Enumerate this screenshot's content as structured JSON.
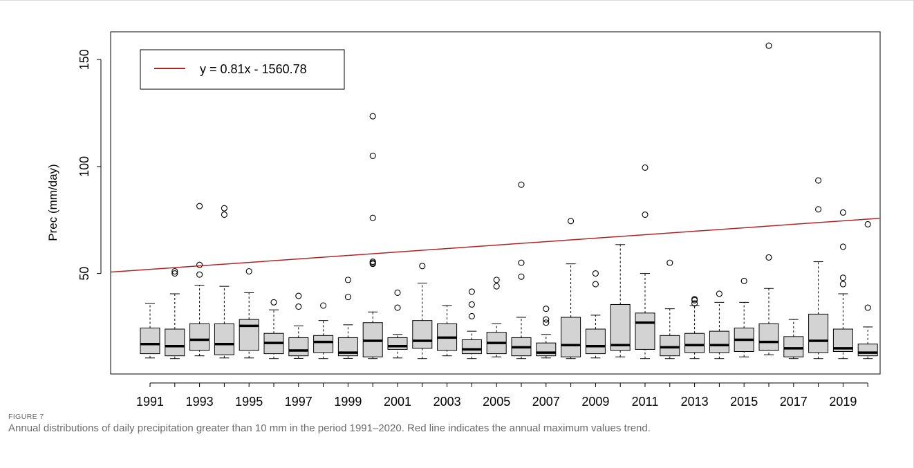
{
  "figure": {
    "label": "FIGURE 7",
    "caption": "Annual distributions of daily precipitation greater than 10 mm in the period 1991–2020. Red line indicates the annual maximum values trend."
  },
  "colors": {
    "box_fill": "#d3d3d3",
    "trend_line": "#b22222",
    "axis": "#000000",
    "frame": "#d9d9d9"
  },
  "chart_data": {
    "type": "box",
    "title": "",
    "xlabel": "",
    "ylabel": "Prec (mm/day)",
    "ylim": [
      3,
      163
    ],
    "grid": false,
    "legend_position": "top-left",
    "yticks": [
      50,
      100,
      150
    ],
    "xtick_labels": [
      "1991",
      "1993",
      "1995",
      "1997",
      "1999",
      "2001",
      "2003",
      "2005",
      "2007",
      "2009",
      "2011",
      "2013",
      "2015",
      "2017",
      "2019"
    ],
    "trend": {
      "label": "y = 0.81x - 1560.78",
      "slope": 0.81,
      "intercept": -1560.78
    },
    "boxes": [
      {
        "year": 1991,
        "min": 10.5,
        "q1": 12.5,
        "median": 17,
        "q3": 24.5,
        "max": 36,
        "outliers": []
      },
      {
        "year": 1992,
        "min": 10.2,
        "q1": 11.5,
        "median": 16,
        "q3": 24,
        "max": 40.5,
        "outliers": [
          50,
          51
        ]
      },
      {
        "year": 1993,
        "min": 11.5,
        "q1": 14,
        "median": 19,
        "q3": 26.5,
        "max": 44.5,
        "outliers": [
          49.5,
          54,
          81.5
        ]
      },
      {
        "year": 1994,
        "min": 10.5,
        "q1": 12,
        "median": 17,
        "q3": 26.5,
        "max": 44,
        "outliers": [
          77.5,
          80.5
        ]
      },
      {
        "year": 1995,
        "min": 10.5,
        "q1": 14,
        "median": 25.5,
        "q3": 28.5,
        "max": 41,
        "outliers": [
          51
        ]
      },
      {
        "year": 1996,
        "min": 10.2,
        "q1": 12.5,
        "median": 17.5,
        "q3": 22,
        "max": 33,
        "outliers": [
          36.5
        ]
      },
      {
        "year": 1997,
        "min": 10.3,
        "q1": 11.5,
        "median": 14,
        "q3": 20,
        "max": 25.5,
        "outliers": [
          34.5,
          39.5
        ]
      },
      {
        "year": 1998,
        "min": 10.2,
        "q1": 13,
        "median": 18,
        "q3": 21,
        "max": 28,
        "outliers": [
          35
        ]
      },
      {
        "year": 1999,
        "min": 10.3,
        "q1": 11.5,
        "median": 13,
        "q3": 20,
        "max": 26,
        "outliers": [
          39,
          47
        ]
      },
      {
        "year": 2000,
        "min": 10.2,
        "q1": 11,
        "median": 18.5,
        "q3": 27,
        "max": 32,
        "outliers": [
          54.5,
          55,
          55.5,
          76,
          105,
          123.5
        ]
      },
      {
        "year": 2001,
        "min": 10.5,
        "q1": 14.5,
        "median": 16,
        "q3": 20,
        "max": 21.5,
        "outliers": [
          34,
          41
        ]
      },
      {
        "year": 2002,
        "min": 10.2,
        "q1": 15,
        "median": 18.5,
        "q3": 28,
        "max": 45.5,
        "outliers": [
          53.5
        ]
      },
      {
        "year": 2003,
        "min": 11.5,
        "q1": 14,
        "median": 20,
        "q3": 26.5,
        "max": 35,
        "outliers": []
      },
      {
        "year": 2004,
        "min": 10.2,
        "q1": 12.5,
        "median": 14.5,
        "q3": 19,
        "max": 23,
        "outliers": [
          30,
          35.5,
          41.5
        ]
      },
      {
        "year": 2005,
        "min": 11,
        "q1": 12.5,
        "median": 17.5,
        "q3": 22.5,
        "max": 26.5,
        "outliers": [
          44,
          47
        ]
      },
      {
        "year": 2006,
        "min": 10.2,
        "q1": 11.5,
        "median": 15.5,
        "q3": 20,
        "max": 29.5,
        "outliers": [
          48.5,
          55,
          91.5
        ]
      },
      {
        "year": 2007,
        "min": 10.5,
        "q1": 11.5,
        "median": 13,
        "q3": 17.5,
        "max": 21.5,
        "outliers": [
          27,
          28.5,
          33.5
        ]
      },
      {
        "year": 2008,
        "min": 10.2,
        "q1": 11,
        "median": 16.5,
        "q3": 29.5,
        "max": 54.5,
        "outliers": [
          74.5
        ]
      },
      {
        "year": 2009,
        "min": 10.5,
        "q1": 12.5,
        "median": 16,
        "q3": 24,
        "max": 30.5,
        "outliers": [
          45,
          50
        ]
      },
      {
        "year": 2010,
        "min": 11,
        "q1": 14,
        "median": 16.5,
        "q3": 35.5,
        "max": 63.5,
        "outliers": []
      },
      {
        "year": 2011,
        "min": 10.2,
        "q1": 14.5,
        "median": 27,
        "q3": 31.5,
        "max": 50,
        "outliers": [
          77.5,
          99.5
        ]
      },
      {
        "year": 2012,
        "min": 10.2,
        "q1": 11.5,
        "median": 15.5,
        "q3": 21,
        "max": 33.5,
        "outliers": [
          55
        ]
      },
      {
        "year": 2013,
        "min": 10.2,
        "q1": 13,
        "median": 16.5,
        "q3": 22,
        "max": 35,
        "outliers": [
          36,
          37.5,
          38
        ]
      },
      {
        "year": 2014,
        "min": 10.2,
        "q1": 13,
        "median": 16.5,
        "q3": 23,
        "max": 36.5,
        "outliers": [
          40.5
        ]
      },
      {
        "year": 2015,
        "min": 11,
        "q1": 13.5,
        "median": 19,
        "q3": 24.5,
        "max": 36.5,
        "outliers": [
          46.5
        ]
      },
      {
        "year": 2016,
        "min": 12,
        "q1": 14,
        "median": 18,
        "q3": 26.5,
        "max": 43,
        "outliers": [
          57.5,
          156.5
        ]
      },
      {
        "year": 2017,
        "min": 10.2,
        "q1": 11,
        "median": 15,
        "q3": 20.5,
        "max": 28.5,
        "outliers": []
      },
      {
        "year": 2018,
        "min": 10.2,
        "q1": 13,
        "median": 18.5,
        "q3": 31,
        "max": 55.5,
        "outliers": [
          80,
          93.5
        ]
      },
      {
        "year": 2019,
        "min": 10.2,
        "q1": 13.5,
        "median": 15,
        "q3": 24,
        "max": 40.5,
        "outliers": [
          45,
          48,
          62.5,
          78.5
        ]
      },
      {
        "year": 2020,
        "min": 10.2,
        "q1": 11.5,
        "median": 13,
        "q3": 17,
        "max": 25,
        "outliers": [
          34,
          73
        ]
      }
    ]
  }
}
